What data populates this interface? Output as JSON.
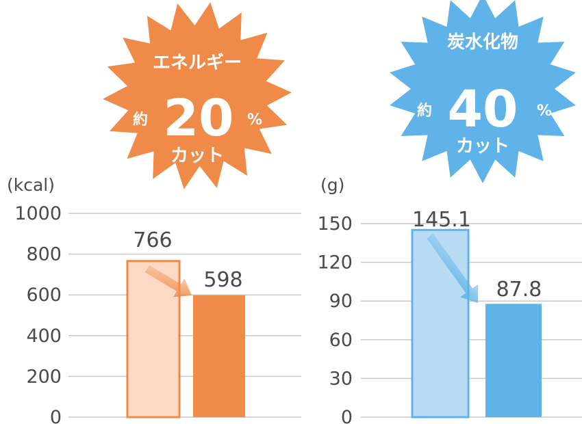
{
  "chart_data": [
    {
      "type": "bar",
      "unit_label": "(kcal)",
      "y_ticks": [
        "0",
        "200",
        "400",
        "600",
        "800",
        "1000"
      ],
      "ylim": [
        0,
        1000
      ],
      "values": [
        766,
        598
      ],
      "value_labels": [
        "766",
        "598"
      ],
      "colors": [
        "#fbd9c4",
        "#f08a48"
      ],
      "edge_color": "#f08a48",
      "grid": true,
      "badge": {
        "title": "エネルギー",
        "prefix": "約",
        "number": "20",
        "percent": "%",
        "suffix": "カット",
        "color": "#f08a48"
      }
    },
    {
      "type": "bar",
      "unit_label": "(g)",
      "y_ticks": [
        "0",
        "30",
        "60",
        "90",
        "120",
        "150"
      ],
      "ylim": [
        0,
        150
      ],
      "values": [
        145.1,
        87.8
      ],
      "value_labels": [
        "145.1",
        "87.8"
      ],
      "colors": [
        "#b8dcf4",
        "#5fb3e8"
      ],
      "edge_color": "#5fb3e8",
      "grid": true,
      "badge": {
        "title": "炭水化物",
        "prefix": "約",
        "number": "40",
        "percent": "%",
        "suffix": "カット",
        "color": "#5fb3e8"
      }
    }
  ]
}
